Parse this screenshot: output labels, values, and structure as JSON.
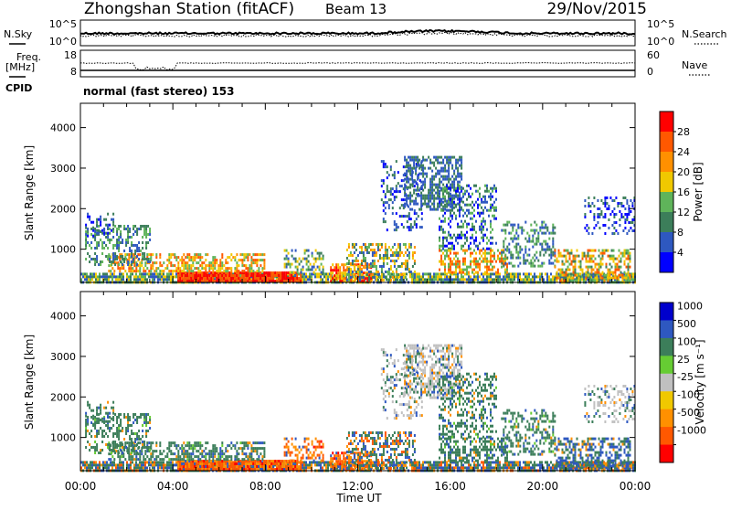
{
  "header": {
    "station": "Zhongshan Station (fitACF)",
    "beam": "Beam 13",
    "date": "29/Nov/2015"
  },
  "top_panel": {
    "left_label": "N.Sky",
    "right_label": "N.Search",
    "left_ticks": [
      "10^5",
      "10^0"
    ],
    "right_ticks": [
      "10^5",
      "10^0"
    ]
  },
  "freq_panel": {
    "left_label_1": "Freq.",
    "left_label_2": "[MHz]",
    "left_ticks": [
      "18",
      "8"
    ],
    "right_ticks": [
      "60",
      "0"
    ],
    "right_label": "Nave",
    "cpid_label": "CPID",
    "cpid_text": "normal (fast stereo) 153"
  },
  "colors": {
    "power": [
      "#0000ff",
      "#2e58c0",
      "#3c7e5a",
      "#5fb45a",
      "#f0c800",
      "#ff9000",
      "#ff5800",
      "#ff0000"
    ],
    "velocity": [
      "#ff0000",
      "#ff5800",
      "#ff9000",
      "#f0c800",
      "#c0c0c0",
      "#66cc33",
      "#3c7e5a",
      "#2e58c0",
      "#0000cc"
    ]
  },
  "chart_data": [
    {
      "type": "heatmap",
      "title": "",
      "xlabel": "Time UT",
      "ylabel": "Slant Range [km]",
      "x_ticks": [
        "00:00",
        "04:00",
        "08:00",
        "12:00",
        "16:00",
        "20:00",
        "00:00"
      ],
      "y_ticks": [
        "1000",
        "2000",
        "3000",
        "4000"
      ],
      "ylim": [
        180,
        4600
      ],
      "colorbar": {
        "label": "Power [dB]",
        "ticks": [
          "4",
          "8",
          "12",
          "16",
          "20",
          "24",
          "28"
        ],
        "range": [
          0,
          32
        ]
      }
    },
    {
      "type": "heatmap",
      "title": "",
      "xlabel": "Time UT",
      "ylabel": "Slant Range [km]",
      "x_ticks": [
        "00:00",
        "04:00",
        "08:00",
        "12:00",
        "16:00",
        "20:00",
        "00:00"
      ],
      "y_ticks": [
        "1000",
        "2000",
        "3000",
        "4000"
      ],
      "ylim": [
        180,
        4600
      ],
      "colorbar": {
        "label": "Velocity [m s⁻¹]",
        "ticks": [
          "1000",
          "500",
          "100",
          "25",
          "-25",
          "-100",
          "-500",
          "-1000"
        ]
      }
    }
  ]
}
